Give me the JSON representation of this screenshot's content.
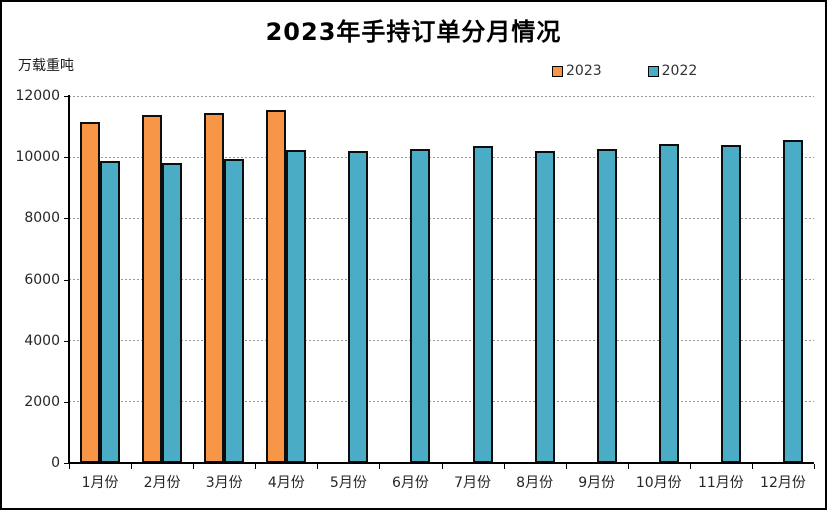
{
  "chart_data": {
    "type": "bar",
    "title": "2023年手持订单分月情况",
    "unit_label": "万载重吨",
    "categories": [
      "1月份",
      "2月份",
      "3月份",
      "4月份",
      "5月份",
      "6月份",
      "7月份",
      "8月份",
      "9月份",
      "10月份",
      "11月份",
      "12月份"
    ],
    "series": [
      {
        "name": "2023",
        "color": "#F79646",
        "values": [
          11134,
          11382,
          11452,
          11540,
          null,
          null,
          null,
          null,
          null,
          null,
          null,
          null
        ]
      },
      {
        "name": "2022",
        "color": "#4BACC6",
        "values": [
          9868,
          9798,
          9930,
          10247,
          10214,
          10274,
          10366,
          10206,
          10260,
          10441,
          10383,
          10557
        ]
      }
    ],
    "ylabel": "",
    "xlabel": "",
    "ylim": [
      0,
      12000
    ],
    "yticks": [
      0,
      2000,
      4000,
      6000,
      8000,
      10000,
      12000
    ],
    "grid": "horizontal-dashed",
    "legend_position": "top-right",
    "colors": {
      "background": "#ffffff",
      "border": "#000000",
      "gridline": "#999999",
      "axis_text": "#262626"
    }
  }
}
